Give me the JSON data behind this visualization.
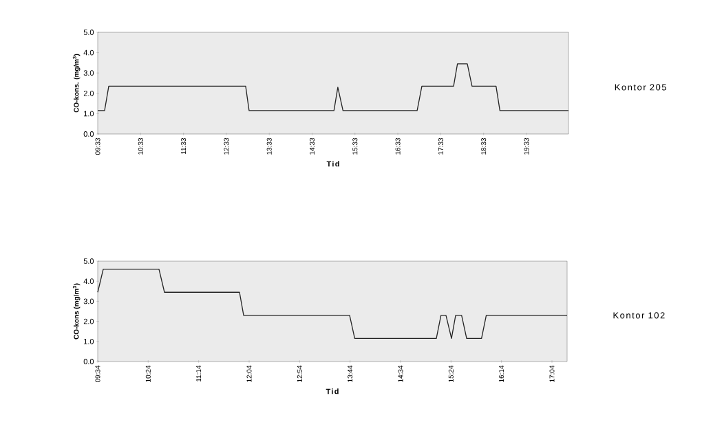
{
  "chart_data": [
    {
      "type": "line",
      "annotations": [
        "Kontor 205"
      ],
      "xlabel": "Tid",
      "ylabel": "CO-kons. (mg/m$^{3}$)",
      "color": "#222222",
      "x": [
        9.55,
        9.71,
        9.807,
        13.0,
        13.08,
        15.06,
        15.15,
        15.27,
        17.0,
        17.11,
        17.85,
        17.94,
        18.17,
        18.28,
        18.84,
        18.93,
        20.53
      ],
      "values": [
        1.15,
        1.15,
        2.35,
        2.35,
        1.15,
        1.15,
        2.3,
        1.15,
        1.15,
        2.35,
        2.35,
        3.45,
        3.45,
        2.35,
        2.35,
        1.15,
        1.15
      ],
      "xlim": [
        9.55,
        20.53
      ],
      "ylim": [
        0,
        5
      ],
      "xticks": [
        {
          "value": 9.55,
          "label": "09:33"
        },
        {
          "value": 10.55,
          "label": "10:33"
        },
        {
          "value": 11.55,
          "label": "11:33"
        },
        {
          "value": 12.55,
          "label": "12:33"
        },
        {
          "value": 13.55,
          "label": "13:33"
        },
        {
          "value": 14.55,
          "label": "14:33"
        },
        {
          "value": 15.55,
          "label": "15:33"
        },
        {
          "value": 16.55,
          "label": "16:33"
        },
        {
          "value": 17.55,
          "label": "17:33"
        },
        {
          "value": 18.55,
          "label": "18:33"
        },
        {
          "value": 19.55,
          "label": "19:33"
        }
      ],
      "yticks": [
        {
          "value": 0,
          "label": "0.0"
        },
        {
          "value": 1,
          "label": "1.0"
        },
        {
          "value": 2,
          "label": "2.0"
        },
        {
          "value": 3,
          "label": "3.0"
        },
        {
          "value": 4,
          "label": "4.0"
        },
        {
          "value": 5,
          "label": "5.0"
        }
      ]
    },
    {
      "type": "line",
      "annotations": [
        "Kontor 102"
      ],
      "xlabel": "Tid",
      "ylabel": "CO-kons (mg/m$^{3}$)",
      "color": "#222222",
      "x": [
        9.567,
        9.658,
        10.578,
        10.669,
        11.908,
        11.976,
        13.726,
        13.81,
        15.158,
        15.234,
        15.317,
        15.408,
        15.476,
        15.575,
        15.658,
        15.904,
        15.982,
        17.317
      ],
      "values": [
        3.45,
        4.6,
        4.6,
        3.45,
        3.45,
        2.3,
        2.3,
        1.15,
        1.15,
        2.3,
        2.3,
        1.15,
        2.3,
        2.3,
        1.15,
        1.15,
        2.3,
        2.3
      ],
      "xlim": [
        9.567,
        17.317
      ],
      "ylim": [
        0,
        5
      ],
      "xticks": [
        {
          "value": 9.567,
          "label": "09:34"
        },
        {
          "value": 10.4,
          "label": "10:24"
        },
        {
          "value": 11.233,
          "label": "11:14"
        },
        {
          "value": 12.067,
          "label": "12:04"
        },
        {
          "value": 12.9,
          "label": "12:54"
        },
        {
          "value": 13.733,
          "label": "13:44"
        },
        {
          "value": 14.567,
          "label": "14:34"
        },
        {
          "value": 15.4,
          "label": "15:24"
        },
        {
          "value": 16.233,
          "label": "16:14"
        },
        {
          "value": 17.067,
          "label": "17:04"
        }
      ],
      "yticks": [
        {
          "value": 0,
          "label": "0.0"
        },
        {
          "value": 1,
          "label": "1.0"
        },
        {
          "value": 2,
          "label": "2.0"
        },
        {
          "value": 3,
          "label": "3.0"
        },
        {
          "value": 4,
          "label": "4.0"
        },
        {
          "value": 5,
          "label": "5.0"
        }
      ]
    }
  ]
}
